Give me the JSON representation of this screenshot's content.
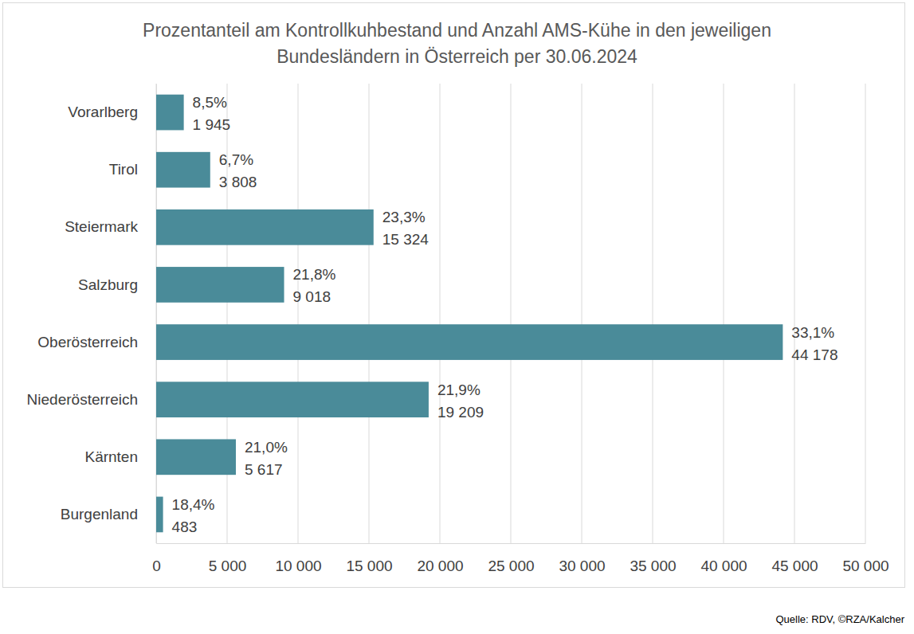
{
  "chart_data": {
    "type": "bar",
    "orientation": "horizontal",
    "title": [
      "Prozentanteil am Kontrollkuhbestand und Anzahl AMS-Kühe in den jeweiligen",
      "Bundesländern in Österreich per 30.06.2024"
    ],
    "categories": [
      "Vorarlberg",
      "Tirol",
      "Steiermark",
      "Salzburg",
      "Oberösterreich",
      "Niederösterreich",
      "Kärnten",
      "Burgenland"
    ],
    "values": [
      1945,
      3808,
      15324,
      9018,
      44178,
      19209,
      5617,
      483
    ],
    "value_labels": [
      "1 945",
      "3 808",
      "15 324",
      "9 018",
      "44 178",
      "19 209",
      "5 617",
      "483"
    ],
    "percentages": [
      8.5,
      6.7,
      23.3,
      21.8,
      33.1,
      21.9,
      21.0,
      18.4
    ],
    "percentage_labels": [
      "8,5%",
      "6,7%",
      "23,3%",
      "21,8%",
      "33,1%",
      "21,9%",
      "21,0%",
      "18,4%"
    ],
    "color": "#4a8b99",
    "xlim": [
      0,
      50000
    ],
    "xticks": [
      0,
      {
        "value": 5000,
        "label": "5 000"
      },
      {
        "value": 10000,
        "label": "10 000"
      },
      {
        "value": 15000,
        "label": "15 000"
      },
      {
        "value": 20000,
        "label": "20 000"
      },
      {
        "value": 25000,
        "label": "25 000"
      },
      {
        "value": 30000,
        "label": "30 000"
      },
      {
        "value": 35000,
        "label": "35 000"
      },
      {
        "value": 40000,
        "label": "40 000"
      },
      {
        "value": 45000,
        "label": "45 000"
      },
      {
        "value": 50000,
        "label": "50 000"
      }
    ],
    "grid": true,
    "data_labels": true,
    "source": "Quelle: RDV, ©RZA/Kalcher"
  }
}
